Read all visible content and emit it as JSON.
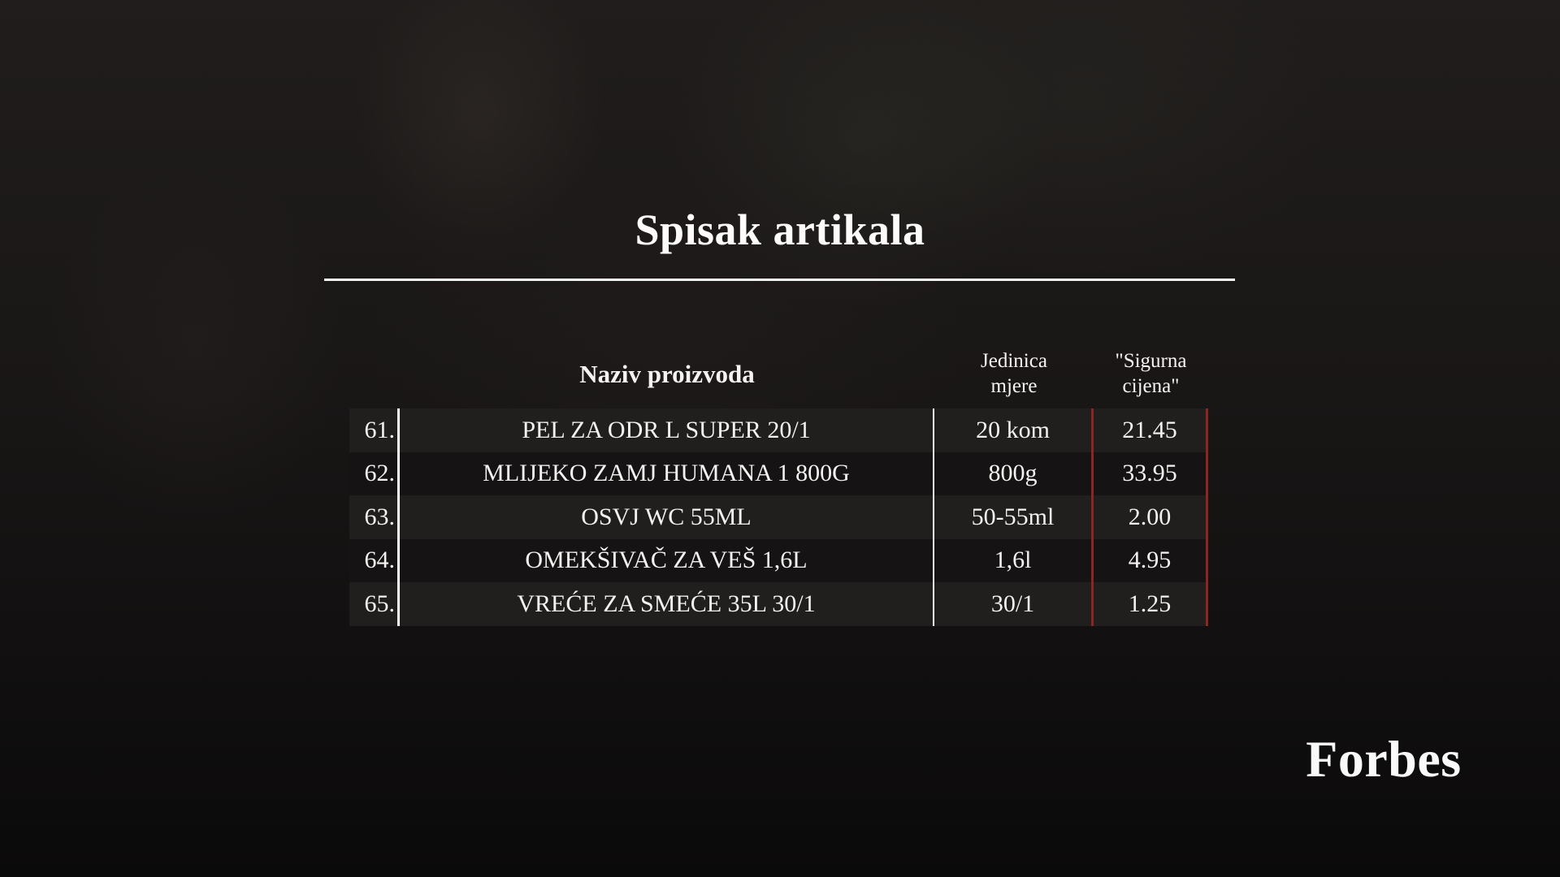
{
  "title": "Spisak artikala",
  "table": {
    "headers": {
      "name": "Naziv proizvoda",
      "unit": "Jedinica\nmjere",
      "price": "\"Sigurna\ncijena\""
    },
    "rows": [
      {
        "num": "61.",
        "name": "PEL ZA ODR L SUPER 20/1",
        "unit": "20 kom",
        "price": "21.45"
      },
      {
        "num": "62.",
        "name": "MLIJEKO ZAMJ HUMANA 1 800G",
        "unit": "800g",
        "price": "33.95"
      },
      {
        "num": "63.",
        "name": "OSVJ WC 55ML",
        "unit": "50-55ml",
        "price": "2.00"
      },
      {
        "num": "64.",
        "name": "OMEKŠIVAČ ZA VEŠ 1,6L",
        "unit": "1,6l",
        "price": "4.95"
      },
      {
        "num": "65.",
        "name": "VREĆE ZA SMEĆE 35L 30/1",
        "unit": "30/1",
        "price": "1.25"
      }
    ]
  },
  "branding": {
    "logo_text": "Forbes"
  },
  "colors": {
    "background": "#151313",
    "row_odd": "#211e1e",
    "row_even": "#151313",
    "line_white": "#f8f8f8",
    "accent_red": "#8b2723",
    "text": "#f4f2f0"
  },
  "chart_data": {
    "type": "table",
    "title": "Spisak artikala",
    "columns": [
      "#",
      "Naziv proizvoda",
      "Jedinica mjere",
      "\"Sigurna cijena\""
    ],
    "rows": [
      [
        "61.",
        "PEL ZA ODR L SUPER 20/1",
        "20 kom",
        "21.45"
      ],
      [
        "62.",
        "MLIJEKO ZAMJ HUMANA 1 800G",
        "800g",
        "33.95"
      ],
      [
        "63.",
        "OSVJ WC 55ML",
        "50-55ml",
        "2.00"
      ],
      [
        "64.",
        "OMEKŠIVAČ ZA VEŠ 1,6L",
        "1,6l",
        "4.95"
      ],
      [
        "65.",
        "VREĆE ZA SMEĆE 35L 30/1",
        "30/1",
        "1.25"
      ]
    ]
  }
}
